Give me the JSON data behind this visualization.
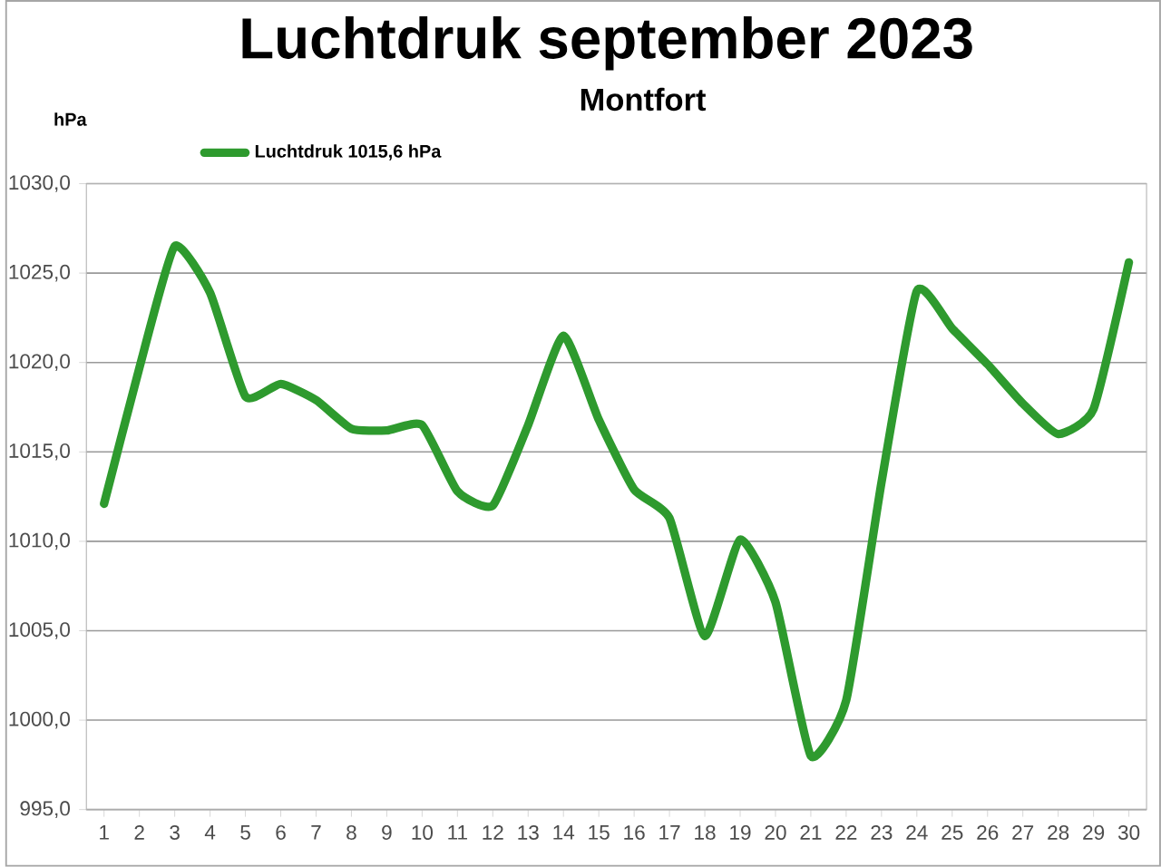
{
  "chart_data": {
    "type": "line",
    "title": "Luchtdruk september 2023",
    "subtitle": "Montfort",
    "ylabel": "hPa",
    "categories": [
      "1",
      "2",
      "3",
      "4",
      "5",
      "6",
      "7",
      "8",
      "9",
      "10",
      "11",
      "12",
      "13",
      "14",
      "15",
      "16",
      "17",
      "18",
      "19",
      "20",
      "21",
      "22",
      "23",
      "24",
      "25",
      "26",
      "27",
      "28",
      "29",
      "30"
    ],
    "series": [
      {
        "name": "Luchtdruk 1015,6 hPa",
        "color": "#2e9a2e",
        "values": [
          1012.1,
          1019.7,
          1026.5,
          1023.9,
          1018.1,
          1018.8,
          1017.9,
          1016.3,
          1016.2,
          1016.5,
          1012.8,
          1012.0,
          1016.5,
          1021.5,
          1016.8,
          1012.9,
          1011.3,
          1004.7,
          1010.1,
          1006.6,
          998.0,
          1001.1,
          1013.3,
          1024.0,
          1021.9,
          1019.9,
          1017.7,
          1016.0,
          1017.4,
          1025.6
        ]
      }
    ],
    "ylim": [
      995,
      1030
    ],
    "yticks": [
      {
        "value": 995,
        "label": "995,0"
      },
      {
        "value": 1000,
        "label": "1000,0"
      },
      {
        "value": 1005,
        "label": "1005,0"
      },
      {
        "value": 1010,
        "label": "1010,0"
      },
      {
        "value": 1015,
        "label": "1015,0"
      },
      {
        "value": 1020,
        "label": "1020,0"
      },
      {
        "value": 1025,
        "label": "1025,0"
      },
      {
        "value": 1030,
        "label": "1030,0"
      }
    ],
    "grid": "y",
    "legend": "top left",
    "marker": "none",
    "line_style": "solid"
  }
}
